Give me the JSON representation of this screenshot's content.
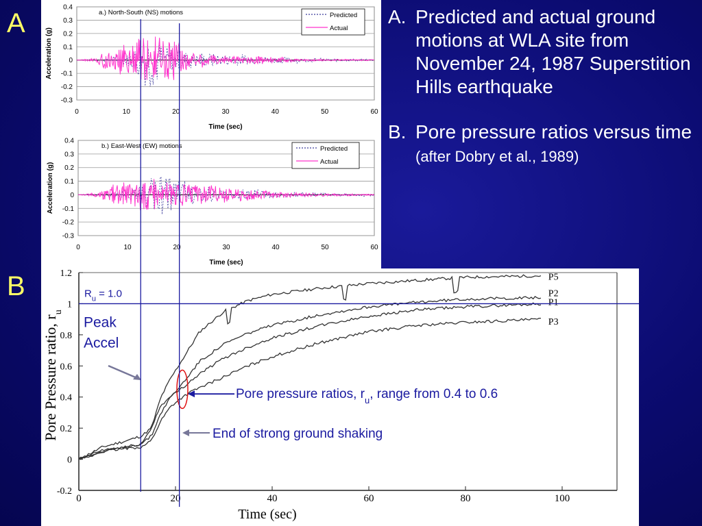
{
  "slide": {
    "label_a": "A",
    "label_b": "B",
    "text_items": [
      {
        "marker": "A.",
        "text": "Predicted and actual ground motions at WLA site from November 24, 1987 Superstition Hills earthquake",
        "note": ""
      },
      {
        "marker": "B.",
        "text": "Pore pressure ratios versus time",
        "note": "(after Dobry et al., 1989)"
      }
    ]
  },
  "chart_data": [
    {
      "type": "line",
      "panel_title": "a.) North-South (NS) motions",
      "xlabel": "Time (sec)",
      "ylabel": "Acceleration (g)",
      "xlim": [
        0,
        60
      ],
      "ylim": [
        -0.3,
        0.4
      ],
      "xticks": [
        "0",
        "10",
        "20",
        "30",
        "40",
        "50",
        "60"
      ],
      "yticks": [
        "0.4",
        "0.3",
        "0.2",
        "0.1",
        "0",
        "-0.1",
        "-0.2",
        "-0.3"
      ],
      "legend_position": "top-right",
      "series": [
        {
          "name": "Predicted",
          "color": "#3a3a9a",
          "dashed": true,
          "envelope_t": [
            0,
            5,
            10,
            13,
            15,
            18,
            22,
            27,
            33,
            40,
            50,
            60
          ],
          "envelope_a": [
            0,
            0.01,
            0.05,
            0.2,
            0.25,
            0.12,
            0.08,
            0.06,
            0.05,
            0.03,
            0.015,
            0.01
          ]
        },
        {
          "name": "Actual",
          "color": "#ff33cc",
          "dashed": false,
          "envelope_t": [
            0,
            4,
            6,
            9,
            13,
            15,
            19,
            22,
            28,
            36,
            45,
            60
          ],
          "envelope_a": [
            0,
            0.02,
            0.09,
            0.11,
            0.2,
            0.17,
            0.22,
            0.08,
            0.04,
            0.04,
            0.01,
            0.005
          ]
        }
      ]
    },
    {
      "type": "line",
      "panel_title": "b.) East-West (EW) motions",
      "xlabel": "Time (sec)",
      "ylabel": "Acceleration (g)",
      "xlim": [
        0,
        60
      ],
      "ylim": [
        -0.3,
        0.4
      ],
      "xticks": [
        "0",
        "10",
        "20",
        "30",
        "40",
        "50",
        "60"
      ],
      "yticks": [
        "0.4",
        "0.3",
        "0.2",
        "0.1",
        "0",
        "-0.1",
        "-0.2",
        "-0.3"
      ],
      "legend_position": "top-right",
      "series": [
        {
          "name": "Predicted",
          "color": "#3a3a9a",
          "dashed": true,
          "envelope_t": [
            0,
            5,
            10,
            14,
            18,
            22,
            26,
            30,
            40,
            50,
            60
          ],
          "envelope_a": [
            0,
            0.01,
            0.04,
            0.12,
            0.22,
            0.1,
            0.07,
            0.05,
            0.03,
            0.015,
            0.01
          ]
        },
        {
          "name": "Actual",
          "color": "#ff33cc",
          "dashed": false,
          "envelope_t": [
            0,
            4,
            7,
            10,
            13,
            16,
            20,
            26,
            36,
            45,
            60
          ],
          "envelope_a": [
            0,
            0.02,
            0.08,
            0.1,
            0.15,
            0.12,
            0.1,
            0.08,
            0.04,
            0.015,
            0.005
          ]
        }
      ]
    },
    {
      "type": "line",
      "ylabel": "Pore Pressure ratio, r",
      "ylabel_sub": "u",
      "xlabel": "Time (sec)",
      "xlim": [
        0,
        100
      ],
      "ylim": [
        -0.2,
        1.2
      ],
      "xticks": [
        "0",
        "20",
        "40",
        "60",
        "80",
        "100"
      ],
      "yticks": [
        "1.2",
        "1",
        "0.8",
        "0.6",
        "0.4",
        "0.2",
        "0",
        "-0.2"
      ],
      "series": [
        {
          "name": "P5",
          "color": "#333333",
          "x": [
            0,
            5,
            10,
            13,
            15,
            17,
            19,
            21,
            23,
            25,
            30,
            35,
            40,
            50,
            60,
            70,
            80,
            96
          ],
          "y": [
            0.0,
            0.08,
            0.12,
            0.15,
            0.2,
            0.4,
            0.52,
            0.62,
            0.72,
            0.82,
            0.95,
            1.02,
            1.06,
            1.1,
            1.13,
            1.15,
            1.17,
            1.18
          ]
        },
        {
          "name": "P2",
          "color": "#333333",
          "x": [
            0,
            5,
            10,
            13,
            15,
            17,
            19,
            21,
            23,
            25,
            30,
            35,
            40,
            50,
            60,
            70,
            80,
            96
          ],
          "y": [
            0.0,
            0.05,
            0.08,
            0.1,
            0.15,
            0.3,
            0.4,
            0.47,
            0.55,
            0.63,
            0.74,
            0.81,
            0.86,
            0.93,
            0.98,
            1.01,
            1.03,
            1.04
          ]
        },
        {
          "name": "P1",
          "color": "#333333",
          "x": [
            0,
            5,
            10,
            13,
            15,
            17,
            19,
            21,
            23,
            25,
            30,
            35,
            40,
            50,
            60,
            70,
            80,
            96
          ],
          "y": [
            0.0,
            0.06,
            0.08,
            0.1,
            0.2,
            0.35,
            0.4,
            0.45,
            0.5,
            0.55,
            0.65,
            0.72,
            0.78,
            0.86,
            0.92,
            0.96,
            0.98,
            1.0
          ]
        },
        {
          "name": "P3",
          "color": "#333333",
          "x": [
            0,
            5,
            10,
            13,
            15,
            17,
            19,
            21,
            23,
            25,
            30,
            35,
            40,
            50,
            60,
            70,
            80,
            96
          ],
          "y": [
            0.0,
            0.05,
            0.07,
            0.08,
            0.12,
            0.25,
            0.34,
            0.39,
            0.43,
            0.46,
            0.53,
            0.6,
            0.66,
            0.75,
            0.82,
            0.86,
            0.88,
            0.9
          ]
        }
      ],
      "reference_line": {
        "label": "R",
        "label_sub": "u",
        "label_tail": " = 1.0",
        "y": 1.0
      },
      "annotations": {
        "peak_accel": "Peak Accel",
        "range_prefix": "Pore pressure ratios, r",
        "range_sub": "u",
        "range_tail": ", range from 0.4 to 0.6",
        "end_shaking": "End of strong ground shaking"
      },
      "markers": {
        "peak_accel_time": 12.8,
        "end_shaking_time": 20.8
      }
    }
  ]
}
